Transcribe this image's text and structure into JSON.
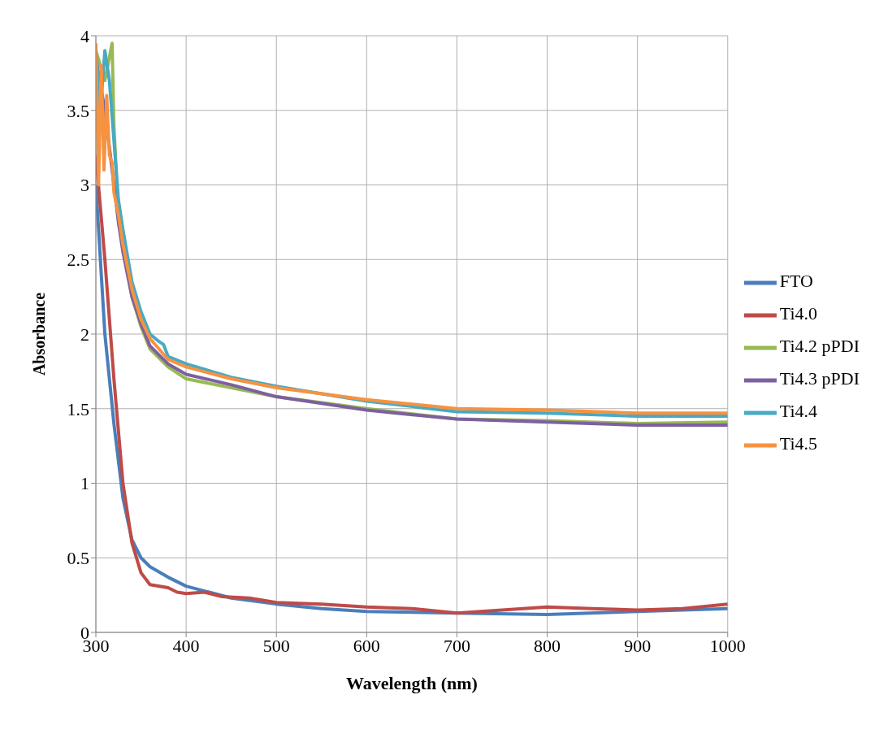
{
  "chart_data": {
    "type": "line",
    "xlabel": "Wavelength (nm)",
    "ylabel": "Absorbance",
    "xlim": [
      300,
      1000
    ],
    "xticks": [
      300,
      400,
      500,
      600,
      700,
      800,
      900,
      1000
    ],
    "ylim": [
      0,
      4
    ],
    "yticks": [
      0,
      0.5,
      1,
      1.5,
      2,
      2.5,
      3,
      3.5,
      4
    ],
    "grid": true,
    "legend": "right",
    "marker": "none",
    "line_style": "solid",
    "series": [
      {
        "name": "FTO",
        "color": "#4a7ebb",
        "x": [
          300,
          310,
          320,
          330,
          340,
          350,
          360,
          380,
          400,
          450,
          500,
          550,
          600,
          700,
          800,
          900,
          1000
        ],
        "values": [
          3.0,
          2.0,
          1.4,
          0.9,
          0.62,
          0.5,
          0.44,
          0.37,
          0.31,
          0.23,
          0.19,
          0.16,
          0.14,
          0.13,
          0.12,
          0.14,
          0.16
        ]
      },
      {
        "name": "Ti4.0",
        "color": "#be4b48",
        "x": [
          300,
          310,
          320,
          330,
          340,
          350,
          360,
          380,
          390,
          400,
          420,
          440,
          470,
          500,
          550,
          600,
          650,
          700,
          750,
          800,
          850,
          900,
          950,
          1000
        ],
        "values": [
          3.2,
          2.5,
          1.7,
          1.0,
          0.6,
          0.4,
          0.32,
          0.3,
          0.27,
          0.26,
          0.27,
          0.24,
          0.23,
          0.2,
          0.19,
          0.17,
          0.16,
          0.13,
          0.15,
          0.17,
          0.16,
          0.15,
          0.16,
          0.19
        ]
      },
      {
        "name": "Ti4.2 pPDI",
        "color": "#98b954",
        "x": [
          300,
          310,
          318,
          320,
          325,
          330,
          340,
          350,
          360,
          380,
          400,
          450,
          500,
          600,
          700,
          800,
          900,
          1000
        ],
        "values": [
          3.9,
          3.7,
          3.95,
          3.4,
          2.8,
          2.6,
          2.25,
          2.05,
          1.9,
          1.78,
          1.7,
          1.64,
          1.58,
          1.5,
          1.43,
          1.42,
          1.4,
          1.41
        ]
      },
      {
        "name": "Ti4.3 pPDI",
        "color": "#7d60a0",
        "x": [
          300,
          310,
          320,
          325,
          330,
          340,
          350,
          360,
          380,
          400,
          450,
          500,
          600,
          700,
          800,
          900,
          1000
        ],
        "values": [
          3.85,
          3.5,
          3.0,
          2.75,
          2.55,
          2.25,
          2.07,
          1.92,
          1.8,
          1.73,
          1.66,
          1.58,
          1.49,
          1.43,
          1.41,
          1.39,
          1.39
        ]
      },
      {
        "name": "Ti4.4",
        "color": "#46aac5",
        "x": [
          300,
          305,
          310,
          315,
          320,
          325,
          330,
          340,
          350,
          360,
          370,
          375,
          380,
          400,
          450,
          500,
          600,
          700,
          800,
          900,
          1000
        ],
        "values": [
          3.9,
          3.5,
          3.9,
          3.7,
          3.3,
          2.9,
          2.7,
          2.35,
          2.15,
          2.0,
          1.95,
          1.93,
          1.85,
          1.8,
          1.71,
          1.65,
          1.55,
          1.48,
          1.47,
          1.45,
          1.45
        ]
      },
      {
        "name": "Ti4.5",
        "color": "#f69240",
        "x": [
          300,
          303,
          306,
          309,
          312,
          315,
          318,
          320,
          325,
          330,
          340,
          350,
          360,
          380,
          400,
          450,
          500,
          600,
          700,
          800,
          900,
          1000
        ],
        "values": [
          3.95,
          3.0,
          3.8,
          3.1,
          3.6,
          3.2,
          3.15,
          2.95,
          2.8,
          2.6,
          2.3,
          2.1,
          1.97,
          1.83,
          1.78,
          1.7,
          1.64,
          1.56,
          1.5,
          1.49,
          1.47,
          1.47
        ]
      }
    ]
  }
}
